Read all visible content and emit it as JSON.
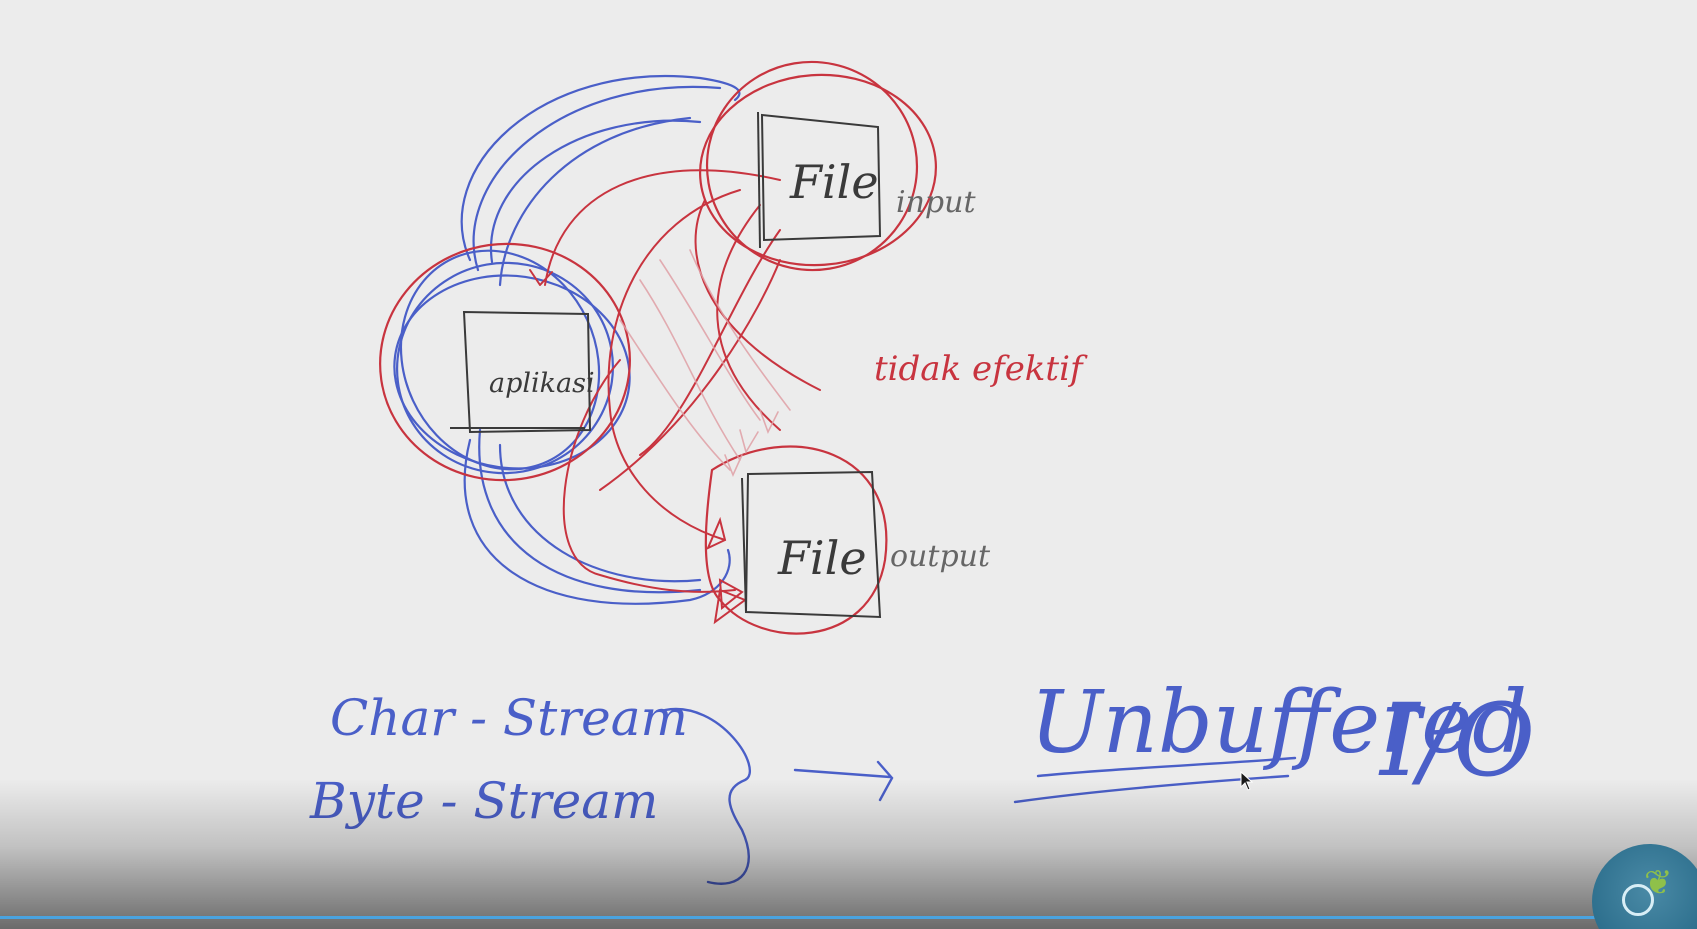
{
  "labels": {
    "input_box": "File",
    "output_box": "File",
    "app_box": "aplikasi",
    "input_caption": "input",
    "output_caption": "output",
    "red_note": "tidak efektif",
    "char_stream": "Char - Stream",
    "byte_stream": "Byte - Stream",
    "unbuffered": "Unbuffered",
    "io": "I/O"
  },
  "icons": {
    "logo": "leaf-logo-icon",
    "cursor": "mouse-pointer-icon"
  },
  "colors": {
    "background": "#ececec",
    "ink_blue": "#3f57c4",
    "ink_red": "#c8343f",
    "ink_dark": "#3a3a3a",
    "progress": "#4aa3e0"
  },
  "video": {
    "progress_percent": 100
  }
}
